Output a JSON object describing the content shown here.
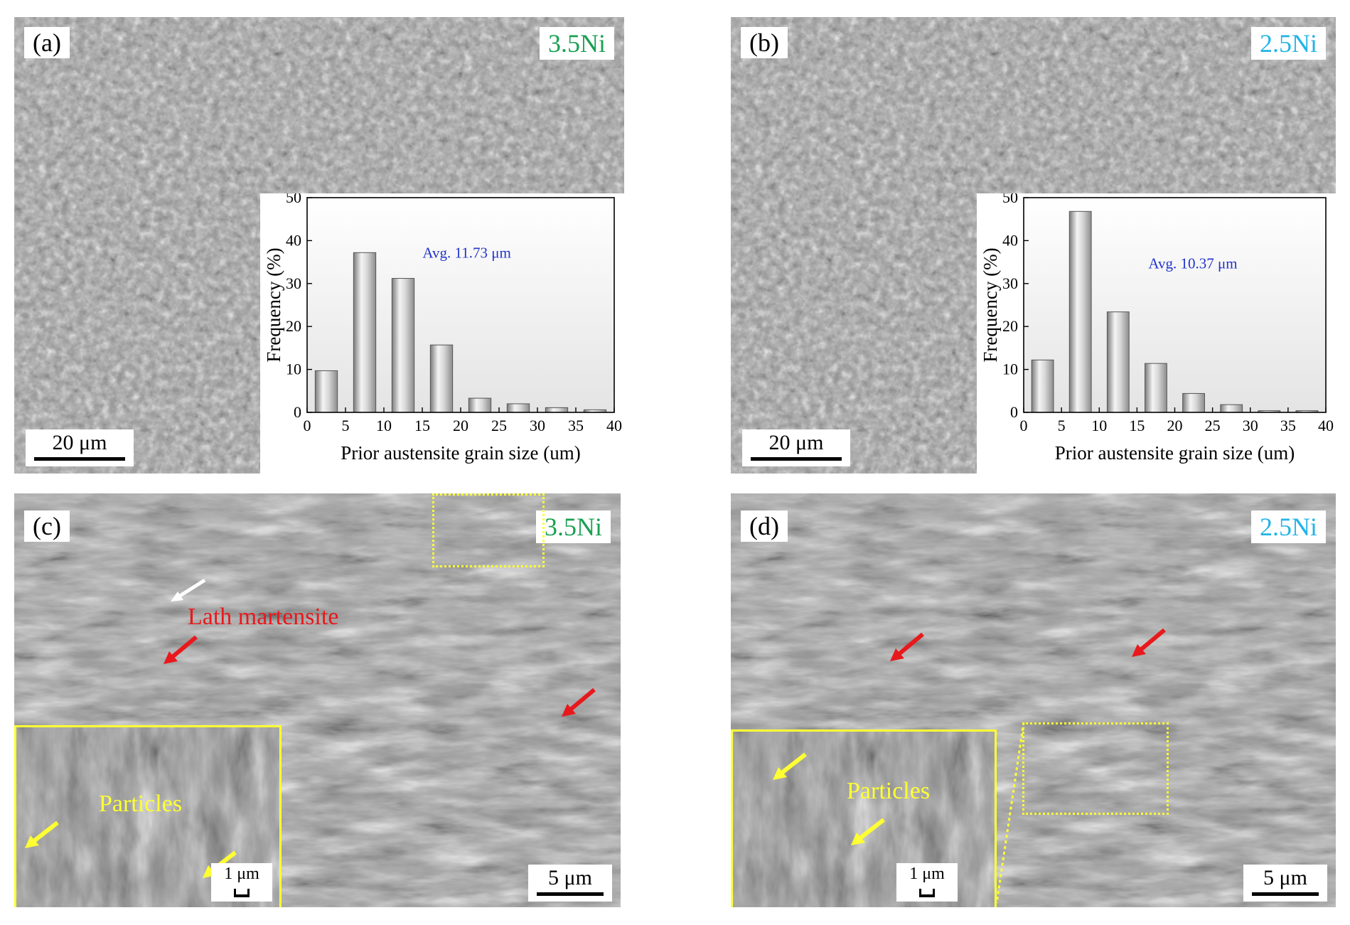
{
  "panels": {
    "a": {
      "letter": "(a)",
      "alloy": "3.5Ni",
      "scale": "20 μm"
    },
    "b": {
      "letter": "(b)",
      "alloy": "2.5Ni",
      "scale": "20 μm"
    },
    "c": {
      "letter": "(c)",
      "alloy": "3.5Ni",
      "scale": "5 μm",
      "inset_scale": "1 μm",
      "label_lath": "Lath martensite",
      "label_particles": "Particles"
    },
    "d": {
      "letter": "(d)",
      "alloy": "2.5Ni",
      "scale": "5 μm",
      "inset_scale": "1 μm",
      "label_particles": "Particles"
    }
  },
  "colors": {
    "alloy_35": "#1aa052",
    "alloy_25": "#22b4e6",
    "avg_text": "#2233cc",
    "lath_text": "#e8191c",
    "particles_text": "#ffff33",
    "inset_border": "#ffff33"
  },
  "chart_data": [
    {
      "type": "bar",
      "xlabel": "Prior austensite grain size (um)",
      "ylabel": "Frequency (%)",
      "annotation": "Avg. 11.73 μm",
      "x_ticks": [
        0,
        5,
        10,
        15,
        20,
        25,
        30,
        35,
        40
      ],
      "y_ticks": [
        0,
        10,
        20,
        30,
        40,
        50
      ],
      "xlim": [
        0,
        40
      ],
      "ylim": [
        0,
        50
      ],
      "categories": [
        2.5,
        7.5,
        12.5,
        17.5,
        22.5,
        27.5,
        32.5,
        37.5
      ],
      "values": [
        9.7,
        37.2,
        31.2,
        15.7,
        3.3,
        2.0,
        1.1,
        0.6
      ]
    },
    {
      "type": "bar",
      "xlabel": "Prior austensite grain size (um)",
      "ylabel": "Frequency (%)",
      "annotation": "Avg. 10.37 μm",
      "x_ticks": [
        0,
        5,
        10,
        15,
        20,
        25,
        30,
        35,
        40
      ],
      "y_ticks": [
        0,
        10,
        20,
        30,
        40,
        50
      ],
      "xlim": [
        0,
        40
      ],
      "ylim": [
        0,
        50
      ],
      "categories": [
        2.5,
        7.5,
        12.5,
        17.5,
        22.5,
        27.5,
        32.5,
        37.5
      ],
      "values": [
        12.2,
        46.8,
        23.4,
        11.4,
        4.4,
        1.8,
        0.4,
        0.4
      ]
    }
  ]
}
